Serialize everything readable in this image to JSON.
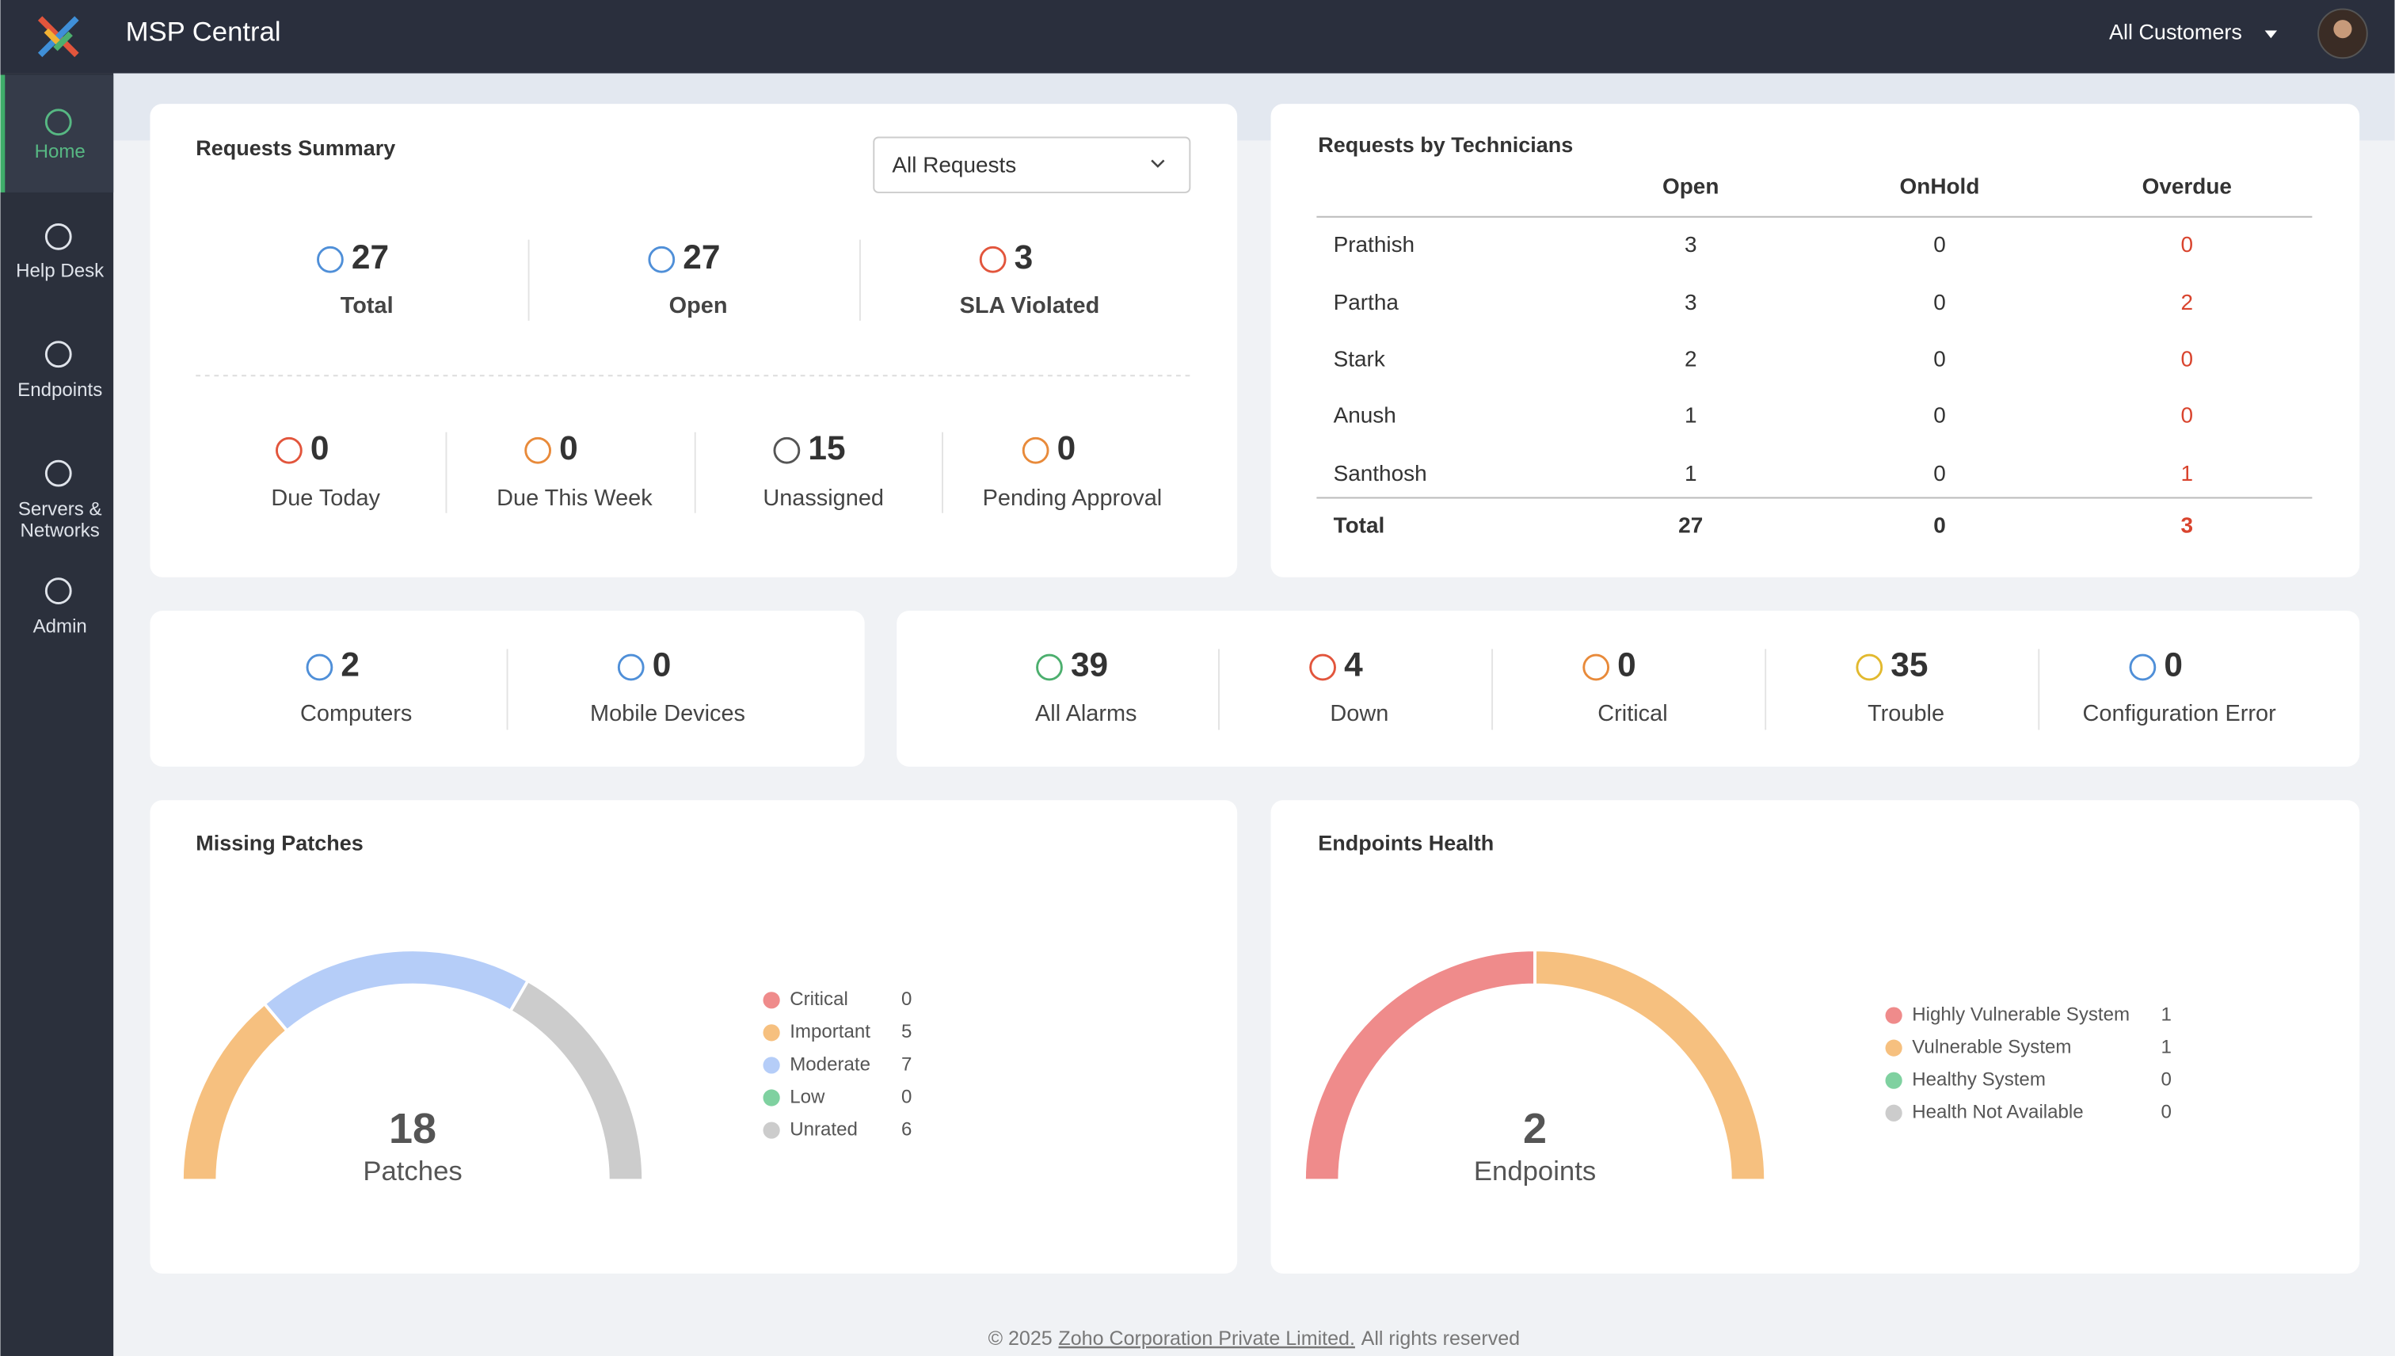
{
  "header": {
    "title": "MSP Central",
    "customer_selector": "All Customers"
  },
  "sidebar": [
    {
      "lines": [
        "Home"
      ]
    },
    {
      "lines": [
        "Help Desk"
      ]
    },
    {
      "lines": [
        "Endpoints"
      ]
    },
    {
      "lines": [
        "Servers &",
        "Networks"
      ]
    },
    {
      "lines": [
        "Admin"
      ]
    }
  ],
  "requests_summary": {
    "title": "Requests Summary",
    "filter": "All Requests",
    "primary": [
      {
        "value": 27,
        "label": "Total"
      },
      {
        "value": 27,
        "label": "Open"
      },
      {
        "value": 3,
        "label": "SLA Violated"
      }
    ],
    "secondary": [
      {
        "value": 0,
        "label": "Due Today"
      },
      {
        "value": 0,
        "label": "Due This Week"
      },
      {
        "value": 15,
        "label": "Unassigned"
      },
      {
        "value": 0,
        "label": "Pending Approval"
      }
    ]
  },
  "technicians": {
    "title": "Requests by Technicians",
    "columns": [
      "Open",
      "OnHold",
      "Overdue"
    ],
    "rows": [
      {
        "name": "Prathish",
        "values": [
          3,
          0,
          0
        ]
      },
      {
        "name": "Partha",
        "values": [
          3,
          0,
          2
        ]
      },
      {
        "name": "Stark",
        "values": [
          2,
          0,
          0
        ]
      },
      {
        "name": "Anush",
        "values": [
          1,
          0,
          0
        ]
      },
      {
        "name": "Santhosh",
        "values": [
          1,
          0,
          1
        ]
      }
    ],
    "total": {
      "name": "Total",
      "values": [
        27,
        0,
        3
      ]
    }
  },
  "devices": [
    {
      "value": 2,
      "label": "Computers"
    },
    {
      "value": 0,
      "label": "Mobile Devices"
    }
  ],
  "alarms": [
    {
      "value": 39,
      "label": "All Alarms"
    },
    {
      "value": 4,
      "label": "Down"
    },
    {
      "value": 0,
      "label": "Critical"
    },
    {
      "value": 35,
      "label": "Trouble"
    },
    {
      "value": 0,
      "label": "Configuration Error"
    }
  ],
  "chart_data": [
    {
      "type": "donut",
      "title": "Missing Patches",
      "center_value": 18,
      "center_label": "Patches",
      "categories": [
        "Critical",
        "Important",
        "Moderate",
        "Low",
        "Unrated"
      ],
      "values": [
        0,
        5,
        7,
        0,
        6
      ],
      "colors": [
        "#ef8b8b",
        "#f6c07f",
        "#b5cdf8",
        "#7fd1a0",
        "#cccccc"
      ]
    },
    {
      "type": "donut",
      "title": "Endpoints Health",
      "center_value": 2,
      "center_label": "Endpoints",
      "categories": [
        "Highly Vulnerable System",
        "Vulnerable System",
        "Healthy System",
        "Health Not Available"
      ],
      "values": [
        1,
        1,
        0,
        0
      ],
      "colors": [
        "#ef8b8b",
        "#f6c07f",
        "#7fd1a0",
        "#cccccc"
      ]
    }
  ],
  "footer": {
    "prefix": "© 2025",
    "link": "Zoho Corporation Private Limited.",
    "suffix": "All rights reserved"
  }
}
